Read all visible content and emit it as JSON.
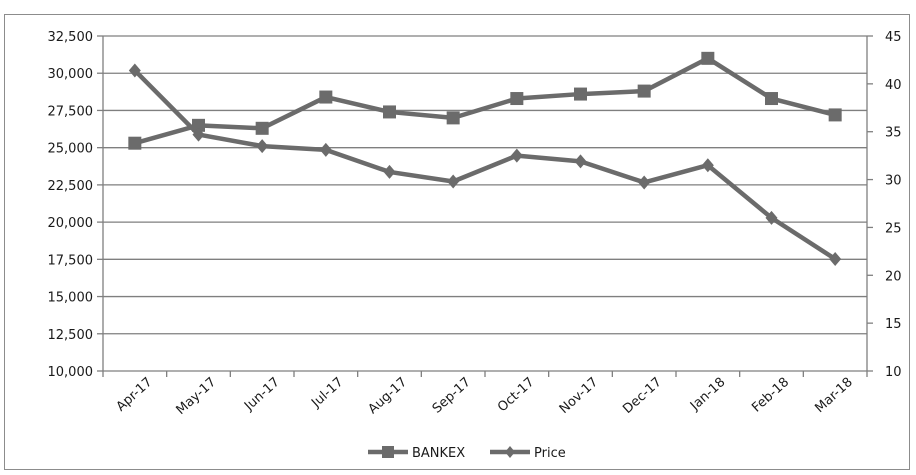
{
  "chart_data": {
    "type": "line",
    "categories": [
      "Apr-17",
      "May-17",
      "Jun-17",
      "Jul-17",
      "Aug-17",
      "Sep-17",
      "Oct-17",
      "Nov-17",
      "Dec-17",
      "Jan-18",
      "Feb-18",
      "Mar-18"
    ],
    "y_left": {
      "min": 10000,
      "max": 32500,
      "step": 2500,
      "tick_labels": [
        "10,000",
        "12,500",
        "15,000",
        "17,500",
        "20,000",
        "22,500",
        "25,000",
        "27,500",
        "30,000",
        "32,500"
      ]
    },
    "y_right": {
      "min": 10,
      "max": 45,
      "step": 5,
      "tick_labels": [
        "10",
        "15",
        "20",
        "25",
        "30",
        "35",
        "40",
        "45"
      ]
    },
    "grid": true,
    "legend_position": "bottom",
    "series": [
      {
        "name": "BANKEX",
        "axis": "left",
        "marker": "square",
        "color": "#6b6b6b",
        "values": [
          25300,
          26500,
          26300,
          28400,
          27400,
          27000,
          28300,
          28600,
          28800,
          31000,
          28300,
          27200
        ]
      },
      {
        "name": "Price",
        "axis": "right",
        "marker": "diamond",
        "color": "#6b6b6b",
        "values": [
          41.4,
          34.7,
          33.5,
          33.1,
          30.8,
          29.8,
          32.5,
          31.9,
          29.7,
          31.5,
          26.0,
          21.7
        ]
      }
    ]
  }
}
